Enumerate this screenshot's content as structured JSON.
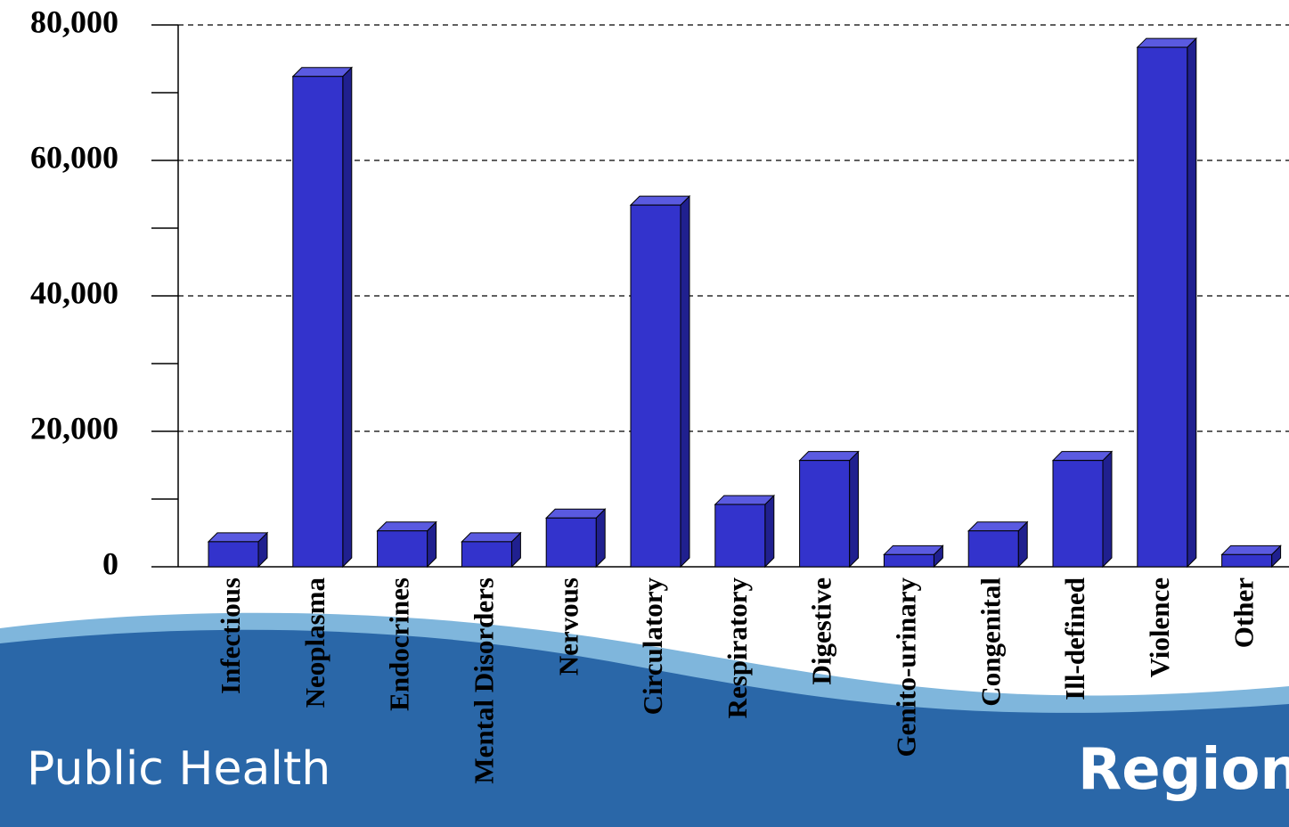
{
  "chart_data": {
    "type": "bar",
    "categories": [
      "Infectious",
      "Neoplasma",
      "Endocrines",
      "Mental Disorders",
      "Nervous",
      "Circulatory",
      "Respiratory",
      "Digestive",
      "Genito-urinary",
      "Congenital",
      "Ill-defined",
      "Violence",
      "Other"
    ],
    "values": [
      3700,
      72400,
      5300,
      3700,
      7200,
      53400,
      9200,
      15700,
      1800,
      5300,
      15700,
      76700,
      1800
    ],
    "color": "#3333cc",
    "ylim": [
      0,
      80000
    ],
    "yticks": [
      0,
      {
        "value": 20000,
        "label": "20,000"
      },
      {
        "value": 40000,
        "label": "40,000"
      },
      {
        "value": 60000,
        "label": "60,000"
      },
      {
        "value": 80000,
        "label": "80,000"
      }
    ],
    "minor_yticks": [
      10000,
      30000,
      50000,
      70000
    ],
    "grid": true
  },
  "footer": {
    "text": "Public Health",
    "logo": "Region"
  }
}
